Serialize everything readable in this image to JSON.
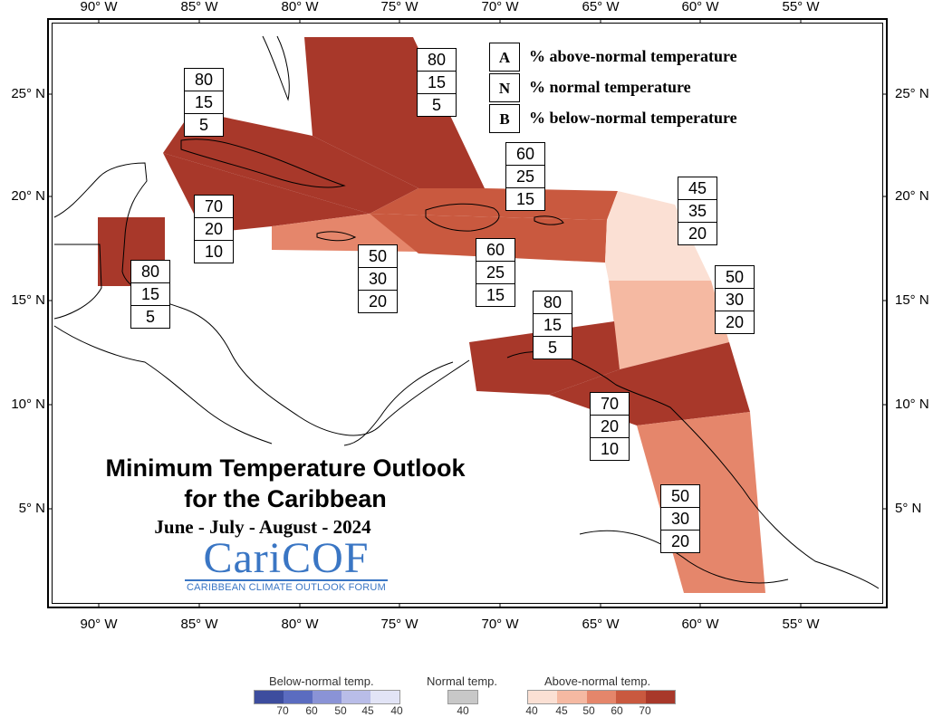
{
  "map": {
    "title_line1": "Minimum Temperature Outlook",
    "title_line2": "for the Caribbean",
    "season": "June - July - August - 2024",
    "logo_main": "CariCOF",
    "logo_sub": "CARIBBEAN CLIMATE OUTLOOK FORUM",
    "lon_labels": [
      "90° W",
      "85° W",
      "80° W",
      "75° W",
      "70° W",
      "65° W",
      "60° W",
      "55° W"
    ],
    "lat_labels": [
      "25° N",
      "20° N",
      "15° N",
      "10° N",
      "5° N"
    ]
  },
  "legend": {
    "items": [
      {
        "key": "A",
        "text": "% above-normal temperature"
      },
      {
        "key": "N",
        "text": "% normal temperature"
      },
      {
        "key": "B",
        "text": "% below-normal temperature"
      }
    ]
  },
  "probability_boxes": [
    {
      "region": "belize-yucatan",
      "values": [
        "80",
        "15",
        "5"
      ]
    },
    {
      "region": "bahamas",
      "values": [
        "80",
        "15",
        "5"
      ]
    },
    {
      "region": "cuba-west",
      "values": [
        "80",
        "15",
        "5"
      ]
    },
    {
      "region": "cuba-south",
      "values": [
        "70",
        "20",
        "10"
      ]
    },
    {
      "region": "jamaica",
      "values": [
        "50",
        "30",
        "20"
      ]
    },
    {
      "region": "hispaniola-north",
      "values": [
        "60",
        "25",
        "15"
      ]
    },
    {
      "region": "hispaniola-south",
      "values": [
        "60",
        "25",
        "15"
      ]
    },
    {
      "region": "leeward-islands",
      "values": [
        "45",
        "35",
        "20"
      ]
    },
    {
      "region": "windward-islands",
      "values": [
        "50",
        "30",
        "20"
      ]
    },
    {
      "region": "abc-islands",
      "values": [
        "80",
        "15",
        "5"
      ]
    },
    {
      "region": "trinidad",
      "values": [
        "70",
        "20",
        "10"
      ]
    },
    {
      "region": "guianas",
      "values": [
        "50",
        "30",
        "20"
      ]
    }
  ],
  "colorbar": {
    "below_label": "Below-normal temp.",
    "normal_label": "Normal temp.",
    "above_label": "Above-normal temp.",
    "below_ticks": [
      "70",
      "60",
      "50",
      "45",
      "40"
    ],
    "normal_ticks": [
      "40"
    ],
    "above_ticks": [
      "40",
      "45",
      "50",
      "60",
      "70"
    ],
    "below_colors": [
      "#3d4d9e",
      "#5b6cc0",
      "#8a93d6",
      "#b9bde8",
      "#e2e4f6"
    ],
    "normal_color": "#c8c8c8",
    "above_colors": [
      "#fbe0d4",
      "#f5b9a2",
      "#e5866b",
      "#c9593f",
      "#a8382a"
    ]
  }
}
